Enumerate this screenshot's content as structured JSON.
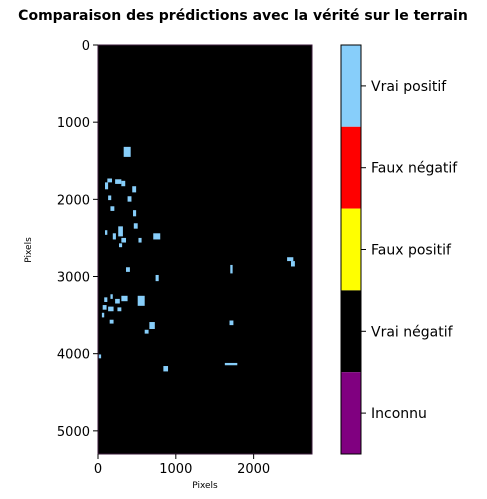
{
  "chart_data": {
    "type": "heatmap",
    "title": "Comparaison des prédictions avec la vérité sur le terrain",
    "xlabel": "Pixels",
    "ylabel": "Pixels",
    "xlim": [
      0,
      2750
    ],
    "ylim": [
      5300,
      0
    ],
    "xticks": [
      0,
      1000,
      2000
    ],
    "yticks": [
      0,
      1000,
      2000,
      3000,
      4000,
      5000
    ],
    "background_class": "Vrai négatif",
    "classes": [
      {
        "label": "Vrai positif",
        "color": "#87cefa"
      },
      {
        "label": "Faux négatif",
        "color": "#ff0000"
      },
      {
        "label": "Faux positif",
        "color": "#ffff00"
      },
      {
        "label": "Vrai négatif",
        "color": "#000000"
      },
      {
        "label": "Inconnu",
        "color": "#800080"
      }
    ],
    "true_positive_patches": [
      {
        "x": [
          330,
          420
        ],
        "y": [
          1320,
          1450
        ]
      },
      {
        "x": [
          120,
          180
        ],
        "y": [
          1730,
          1780
        ]
      },
      {
        "x": [
          220,
          300
        ],
        "y": [
          1740,
          1800
        ]
      },
      {
        "x": [
          300,
          350
        ],
        "y": [
          1760,
          1830
        ]
      },
      {
        "x": [
          90,
          130
        ],
        "y": [
          1780,
          1870
        ]
      },
      {
        "x": [
          440,
          490
        ],
        "y": [
          1830,
          1910
        ]
      },
      {
        "x": [
          130,
          170
        ],
        "y": [
          1950,
          2010
        ]
      },
      {
        "x": [
          380,
          430
        ],
        "y": [
          1960,
          2030
        ]
      },
      {
        "x": [
          160,
          210
        ],
        "y": [
          2090,
          2150
        ]
      },
      {
        "x": [
          450,
          490
        ],
        "y": [
          2140,
          2220
        ]
      },
      {
        "x": [
          460,
          510
        ],
        "y": [
          2310,
          2380
        ]
      },
      {
        "x": [
          260,
          320
        ],
        "y": [
          2350,
          2480
        ]
      },
      {
        "x": [
          90,
          120
        ],
        "y": [
          2400,
          2460
        ]
      },
      {
        "x": [
          710,
          800
        ],
        "y": [
          2440,
          2520
        ]
      },
      {
        "x": [
          190,
          230
        ],
        "y": [
          2440,
          2520
        ]
      },
      {
        "x": [
          300,
          360
        ],
        "y": [
          2500,
          2560
        ]
      },
      {
        "x": [
          520,
          560
        ],
        "y": [
          2500,
          2560
        ]
      },
      {
        "x": [
          270,
          310
        ],
        "y": [
          2570,
          2620
        ]
      },
      {
        "x": [
          2430,
          2510
        ],
        "y": [
          2750,
          2800
        ]
      },
      {
        "x": [
          1700,
          1730
        ],
        "y": [
          2850,
          2960
        ]
      },
      {
        "x": [
          2480,
          2530
        ],
        "y": [
          2800,
          2870
        ]
      },
      {
        "x": [
          360,
          410
        ],
        "y": [
          2880,
          2940
        ]
      },
      {
        "x": [
          740,
          780
        ],
        "y": [
          2980,
          3060
        ]
      },
      {
        "x": [
          160,
          190
        ],
        "y": [
          3230,
          3290
        ]
      },
      {
        "x": [
          300,
          380
        ],
        "y": [
          3250,
          3320
        ]
      },
      {
        "x": [
          510,
          600
        ],
        "y": [
          3250,
          3380
        ]
      },
      {
        "x": [
          80,
          120
        ],
        "y": [
          3270,
          3330
        ]
      },
      {
        "x": [
          220,
          280
        ],
        "y": [
          3290,
          3350
        ]
      },
      {
        "x": [
          60,
          110
        ],
        "y": [
          3370,
          3430
        ]
      },
      {
        "x": [
          130,
          200
        ],
        "y": [
          3390,
          3450
        ]
      },
      {
        "x": [
          250,
          300
        ],
        "y": [
          3400,
          3450
        ]
      },
      {
        "x": [
          50,
          80
        ],
        "y": [
          3470,
          3530
        ]
      },
      {
        "x": [
          660,
          730
        ],
        "y": [
          3590,
          3680
        ]
      },
      {
        "x": [
          150,
          200
        ],
        "y": [
          3560,
          3610
        ]
      },
      {
        "x": [
          1690,
          1740
        ],
        "y": [
          3570,
          3630
        ]
      },
      {
        "x": [
          600,
          650
        ],
        "y": [
          3690,
          3740
        ]
      },
      {
        "x": [
          1630,
          1790
        ],
        "y": [
          4120,
          4150
        ]
      },
      {
        "x": [
          840,
          900
        ],
        "y": [
          4160,
          4230
        ]
      },
      {
        "x": [
          10,
          40
        ],
        "y": [
          4010,
          4060
        ]
      }
    ]
  }
}
